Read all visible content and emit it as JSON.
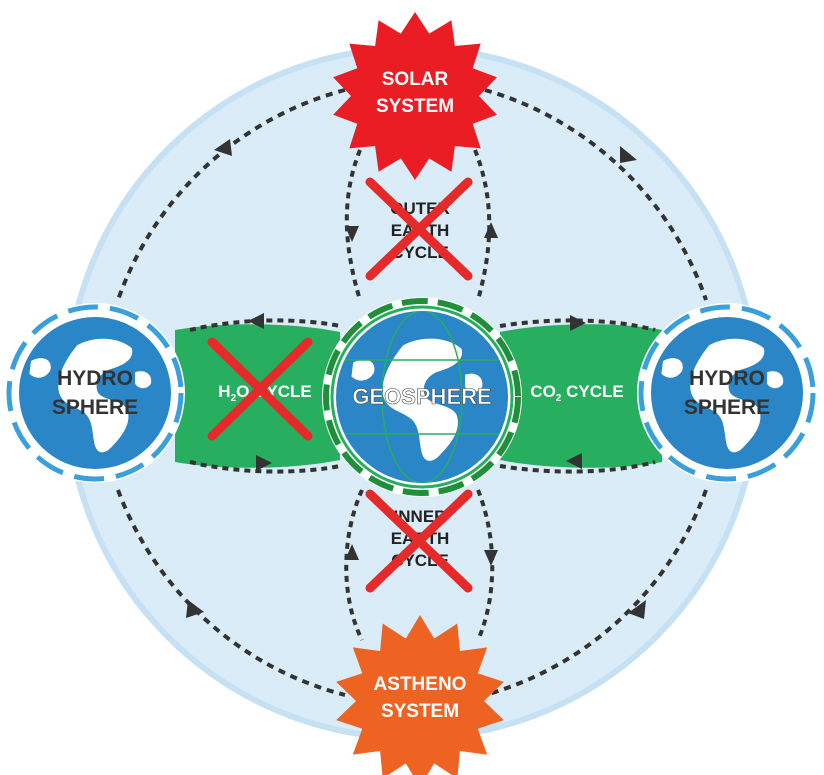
{
  "colors": {
    "ring": "#d9ecf8",
    "background": "#ffffff",
    "band": "#27ae5f",
    "ocean": "#2a86c6",
    "land": "#ffffff",
    "solar": "#ea1c24",
    "astheno": "#ee6322",
    "cross": "#e62a2a",
    "dash_dark": "#333333",
    "dash_blue": "#3aa0dc",
    "dash_green": "#1f8f3a"
  },
  "nodes": {
    "solar": {
      "line1": "SOLAR",
      "line2": "SYSTEM"
    },
    "astheno": {
      "line1": "ASTHENO",
      "line2": "SYSTEM"
    },
    "geosphere": {
      "label": "GEOSPHERE"
    },
    "hydro_left": {
      "line1": "HYDRO",
      "line2": "SPHERE"
    },
    "hydro_right": {
      "line1": "HYDRO",
      "line2": "SPHERE"
    }
  },
  "cycles": {
    "h2o": {
      "prefix": "H",
      "sub": "2",
      "suffix": "O CYCLE",
      "crossed": true
    },
    "co2": {
      "prefix": "CO",
      "sub": "2",
      "suffix": " CYCLE",
      "crossed": false
    },
    "outer": {
      "line1": "OUTER",
      "line2": "EARTH",
      "line3": "CYCLE",
      "crossed": true
    },
    "inner": {
      "line1": "INNER",
      "line2": "EARTH",
      "line3": "CYCLE",
      "crossed": true
    }
  }
}
